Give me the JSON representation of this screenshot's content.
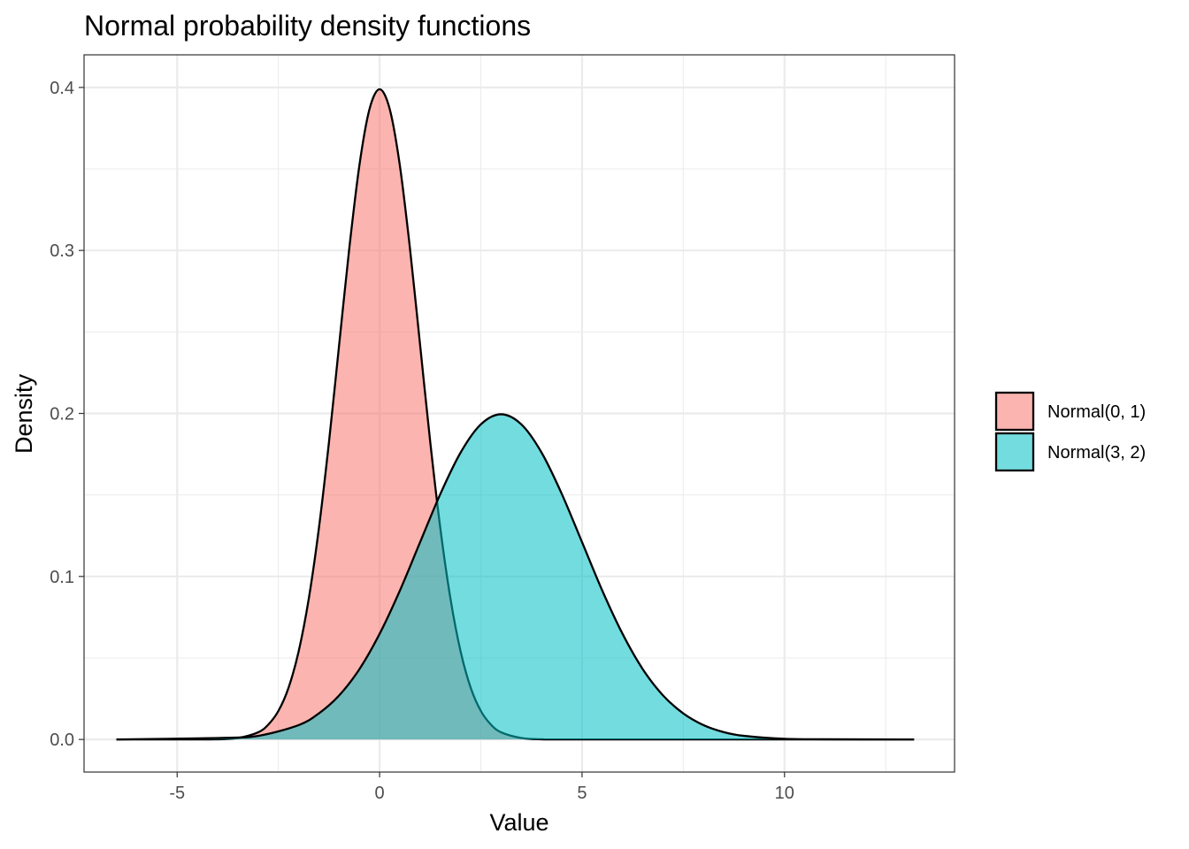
{
  "chart_data": {
    "type": "area",
    "title": "Normal probability density functions",
    "xlabel": "Value",
    "ylabel": "Density",
    "xlim": [
      -7.3,
      14.2
    ],
    "ylim": [
      -0.02,
      0.42
    ],
    "x_ticks": [
      -5,
      0,
      5,
      10
    ],
    "x_tick_labels": [
      "-5",
      "0",
      "5",
      "10"
    ],
    "y_ticks": [
      0.0,
      0.1,
      0.2,
      0.3,
      0.4
    ],
    "y_tick_labels": [
      "0.0",
      "0.1",
      "0.2",
      "0.3",
      "0.4"
    ],
    "grid": true,
    "legend_position": "right",
    "series": [
      {
        "name": "Normal(0, 1)",
        "color": "#f8766d",
        "x": [
          -6.5,
          -4.5,
          -4.0,
          -3.5,
          -3.0,
          -2.75,
          -2.5,
          -2.25,
          -2.0,
          -1.75,
          -1.5,
          -1.25,
          -1.0,
          -0.75,
          -0.5,
          -0.25,
          0.0,
          0.25,
          0.5,
          0.75,
          1.0,
          1.25,
          1.5,
          1.75,
          2.0,
          2.25,
          2.5,
          2.75,
          3.0,
          3.5,
          4.0,
          5.0,
          13.2
        ],
        "y": [
          0.0,
          0.0,
          0.0001,
          0.0009,
          0.0044,
          0.0091,
          0.0175,
          0.0317,
          0.054,
          0.0863,
          0.1295,
          0.1826,
          0.242,
          0.3011,
          0.3521,
          0.3867,
          0.3989,
          0.3867,
          0.3521,
          0.3011,
          0.242,
          0.1826,
          0.1295,
          0.0863,
          0.054,
          0.0317,
          0.0175,
          0.0091,
          0.0044,
          0.0009,
          0.0001,
          0.0,
          0.0
        ]
      },
      {
        "name": "Normal(3, 2)",
        "color": "#00bfc4",
        "x": [
          -6.5,
          -4.0,
          -3.0,
          -2.0,
          -1.5,
          -1.0,
          -0.5,
          0.0,
          0.5,
          1.0,
          1.5,
          2.0,
          2.5,
          3.0,
          3.5,
          4.0,
          4.5,
          5.0,
          5.5,
          6.0,
          6.5,
          7.0,
          7.5,
          8.0,
          8.5,
          9.0,
          10.0,
          11.0,
          13.2
        ],
        "y": [
          0.0,
          0.0009,
          0.0022,
          0.0088,
          0.016,
          0.027,
          0.0431,
          0.0648,
          0.0913,
          0.121,
          0.1506,
          0.176,
          0.1933,
          0.1995,
          0.1933,
          0.176,
          0.1506,
          0.121,
          0.0913,
          0.0648,
          0.0431,
          0.027,
          0.016,
          0.0088,
          0.0045,
          0.0022,
          0.0004,
          0.0001,
          0.0
        ]
      }
    ]
  }
}
